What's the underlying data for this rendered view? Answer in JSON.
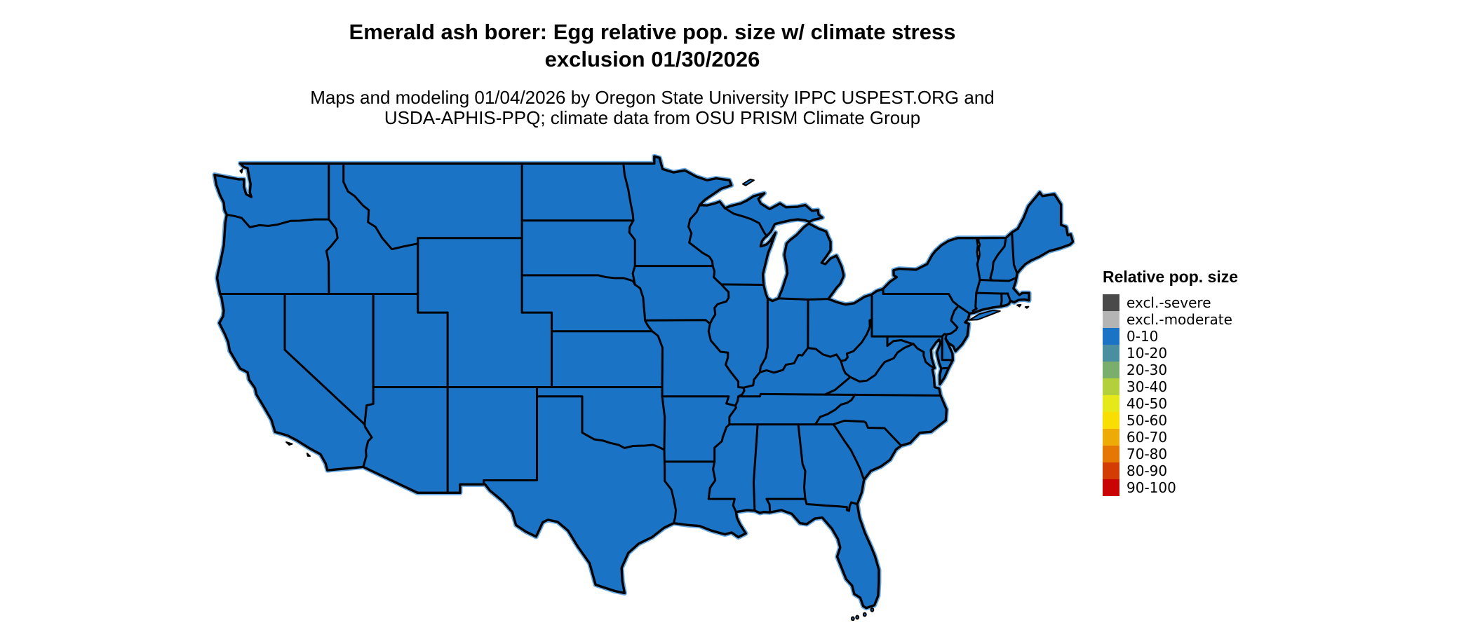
{
  "title": {
    "line1": "Emerald ash borer: Egg relative pop. size w/ climate stress",
    "line2": "exclusion 01/30/2026"
  },
  "subtitle": {
    "line1": "Maps and modeling 01/04/2026 by Oregon State University IPPC USPEST.ORG and",
    "line2": "USDA-APHIS-PPQ; climate data from OSU PRISM Climate Group"
  },
  "map": {
    "region": "Contiguous United States",
    "land_category": "0-10",
    "colors": {
      "land": "#1b73c6",
      "line": "#000000",
      "water": "#ffffff",
      "halo": "#69aae4"
    }
  },
  "legend": {
    "title": "Relative pop. size",
    "items": [
      {
        "label": "excl.-severe",
        "color": "#4a4a4a"
      },
      {
        "label": "excl.-moderate",
        "color": "#b4b4b4"
      },
      {
        "label": "0-10",
        "color": "#1b73c6"
      },
      {
        "label": "10-20",
        "color": "#4a8fa0"
      },
      {
        "label": "20-30",
        "color": "#79ae6c"
      },
      {
        "label": "30-40",
        "color": "#b3d03c"
      },
      {
        "label": "40-50",
        "color": "#e6e819"
      },
      {
        "label": "50-60",
        "color": "#f8de02"
      },
      {
        "label": "60-70",
        "color": "#eeab08"
      },
      {
        "label": "70-80",
        "color": "#e47803"
      },
      {
        "label": "80-90",
        "color": "#d33c03"
      },
      {
        "label": "90-100",
        "color": "#c80404"
      }
    ]
  },
  "chart_data": {
    "type": "choropleth",
    "title": "Emerald ash borer: Egg relative pop. size w/ climate stress exclusion 01/30/2026",
    "region": "Contiguous United States",
    "variable": "Relative pop. size",
    "categories": [
      "excl.-severe",
      "excl.-moderate",
      "0-10",
      "10-20",
      "20-30",
      "30-40",
      "40-50",
      "50-60",
      "60-70",
      "70-80",
      "80-90",
      "90-100"
    ],
    "values": {
      "all_visible_states": "0-10"
    },
    "notes": "Entire contiguous US land area is rendered in the 0-10 class (blue); Great Lakes and ocean are white; state borders drawn in black.",
    "legend_position": "right"
  }
}
